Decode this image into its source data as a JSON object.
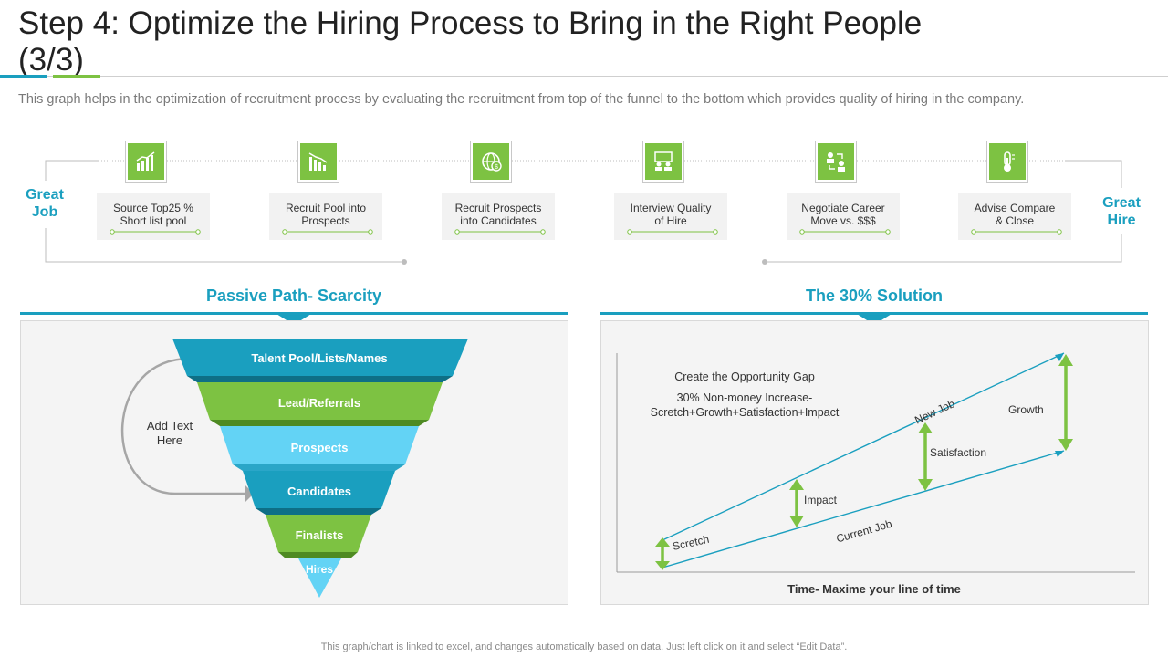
{
  "header": {
    "title": "Step 4: Optimize the Hiring Process to Bring in the Right People (3/3)",
    "subtitle": "This graph helps in the optimization of recruitment process by evaluating the recruitment from top of the funnel to the bottom which provides quality of hiring in the company."
  },
  "process": {
    "start_label_line1": "Great",
    "start_label_line2": "Job",
    "end_label_line1": "Great",
    "end_label_line2": "Hire",
    "steps": [
      {
        "line1": "Source Top25 %",
        "line2": "Short list pool",
        "icon": "growth-chart-icon"
      },
      {
        "line1": "Recruit Pool into",
        "line2": "Prospects",
        "icon": "decline-chart-icon"
      },
      {
        "line1": "Recruit Prospects",
        "line2": "into Candidates",
        "icon": "globe-dollar-icon"
      },
      {
        "line1": "Interview Quality",
        "line2": "of Hire",
        "icon": "interview-icon"
      },
      {
        "line1": "Negotiate Career",
        "line2": "Move vs. $$$",
        "icon": "negotiate-icon"
      },
      {
        "line1": "Advise Compare",
        "line2": "& Close",
        "icon": "thermometer-icon"
      }
    ]
  },
  "funnel_panel": {
    "title": "Passive Path- Scarcity",
    "loop_text_line1": "Add Text",
    "loop_text_line2": "Here",
    "levels": [
      {
        "label": "Talent Pool/Lists/Names",
        "color": "#1a9fbf"
      },
      {
        "label": "Lead/Referrals",
        "color": "#7dc242"
      },
      {
        "label": "Prospects",
        "color": "#63d3f5"
      },
      {
        "label": "Candidates",
        "color": "#1a9fbf"
      },
      {
        "label": "Finalists",
        "color": "#7dc242"
      },
      {
        "label": "Hires",
        "color": "#63d3f5"
      }
    ]
  },
  "solution_panel": {
    "title": "The 30% Solution",
    "note_line1": "Create the Opportunity Gap",
    "note_line2": "30% Non-money Increase-",
    "note_line3": "Scretch+Growth+Satisfaction+Impact",
    "new_job_label": "New Job",
    "current_job_label": "Current Job",
    "scretch_label": "Scretch",
    "impact_label": "Impact",
    "satisfaction_label": "Satisfaction",
    "growth_label": "Growth",
    "x_axis_label": "Time- Maxime your line of time"
  },
  "footer": {
    "note": "This graph/chart is linked to excel, and changes automatically based on data. Just left click on it and select “Edit Data”."
  },
  "colors": {
    "blue": "#1a9fbf",
    "green": "#7dc242",
    "light_blue": "#63d3f5"
  }
}
